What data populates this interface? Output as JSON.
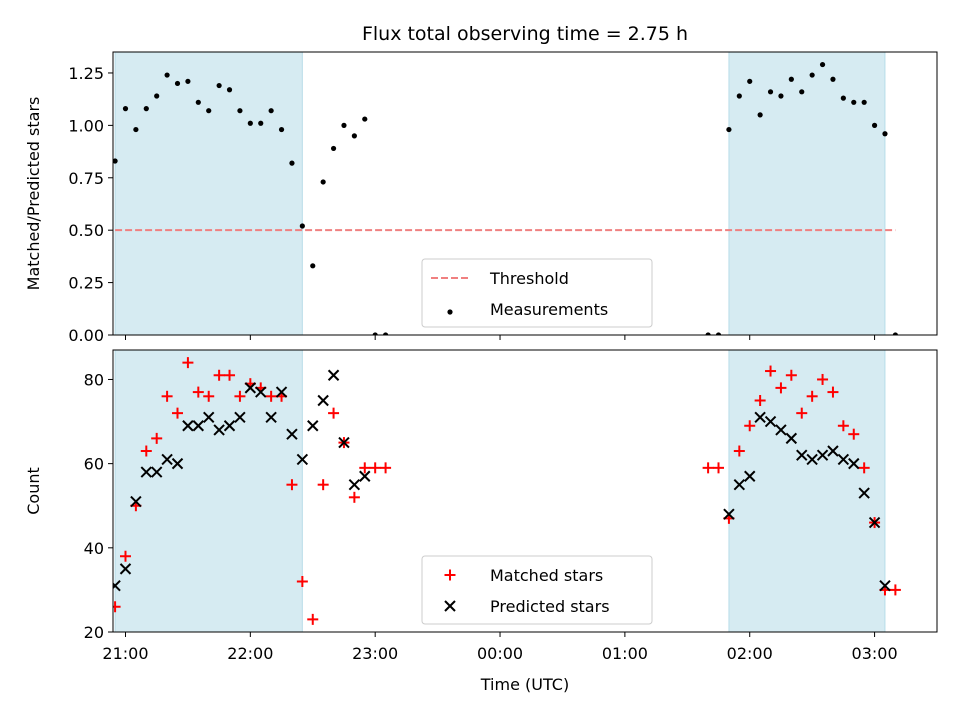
{
  "title": "Flux total observing time = 2.75 h",
  "chart_data": [
    {
      "type": "scatter",
      "panel": "top",
      "title": "Flux total observing time = 2.75 h",
      "xlabel": "",
      "ylabel": "Matched/Predicted stars",
      "xlim": [
        "20:54",
        "03:30"
      ],
      "ylim": [
        0.0,
        1.35
      ],
      "yticks": [
        0.0,
        0.25,
        0.5,
        0.75,
        1.0,
        1.25
      ],
      "ytick_labels": [
        "0.00",
        "0.25",
        "0.50",
        "0.75",
        "1.00",
        "1.25"
      ],
      "shaded_intervals": [
        [
          "20:55",
          "22:25"
        ],
        [
          "01:50",
          "03:05"
        ]
      ],
      "threshold": {
        "label": "Threshold",
        "value": 0.5,
        "x_start": "20:55",
        "x_end": "03:10",
        "color": "#f08080",
        "style": "dashed"
      },
      "legend": {
        "placement": "lower center",
        "entries": [
          "Threshold",
          "Measurements"
        ]
      },
      "series": [
        {
          "name": "Measurements",
          "marker": "dot",
          "color": "#000000",
          "points": [
            [
              "20:55",
              0.83
            ],
            [
              "21:00",
              1.08
            ],
            [
              "21:05",
              0.98
            ],
            [
              "21:10",
              1.08
            ],
            [
              "21:15",
              1.14
            ],
            [
              "21:20",
              1.24
            ],
            [
              "21:25",
              1.2
            ],
            [
              "21:30",
              1.21
            ],
            [
              "21:35",
              1.11
            ],
            [
              "21:40",
              1.07
            ],
            [
              "21:45",
              1.19
            ],
            [
              "21:50",
              1.17
            ],
            [
              "21:55",
              1.07
            ],
            [
              "22:00",
              1.01
            ],
            [
              "22:05",
              1.01
            ],
            [
              "22:10",
              1.07
            ],
            [
              "22:15",
              0.98
            ],
            [
              "22:20",
              0.82
            ],
            [
              "22:25",
              0.52
            ],
            [
              "22:30",
              0.33
            ],
            [
              "22:35",
              0.73
            ],
            [
              "22:40",
              0.89
            ],
            [
              "22:45",
              1.0
            ],
            [
              "22:50",
              0.95
            ],
            [
              "22:55",
              1.03
            ],
            [
              "23:00",
              0.0
            ],
            [
              "23:05",
              0.0
            ],
            [
              "01:40",
              0.0
            ],
            [
              "01:45",
              0.0
            ],
            [
              "01:50",
              0.98
            ],
            [
              "01:55",
              1.14
            ],
            [
              "02:00",
              1.21
            ],
            [
              "02:05",
              1.05
            ],
            [
              "02:10",
              1.16
            ],
            [
              "02:15",
              1.14
            ],
            [
              "02:20",
              1.22
            ],
            [
              "02:25",
              1.16
            ],
            [
              "02:30",
              1.24
            ],
            [
              "02:35",
              1.29
            ],
            [
              "02:40",
              1.22
            ],
            [
              "02:45",
              1.13
            ],
            [
              "02:50",
              1.11
            ],
            [
              "02:55",
              1.11
            ],
            [
              "03:00",
              1.0
            ],
            [
              "03:05",
              0.96
            ],
            [
              "03:10",
              0.0
            ]
          ]
        }
      ]
    },
    {
      "type": "scatter",
      "panel": "bottom",
      "xlabel": "Time (UTC)",
      "ylabel": "Count",
      "xlim": [
        "20:54",
        "03:30"
      ],
      "ylim": [
        20,
        87
      ],
      "xticks": [
        "21:00",
        "22:00",
        "23:00",
        "00:00",
        "01:00",
        "02:00",
        "03:00"
      ],
      "yticks": [
        20,
        40,
        60,
        80
      ],
      "shaded_intervals": [
        [
          "20:55",
          "22:25"
        ],
        [
          "01:50",
          "03:05"
        ]
      ],
      "legend": {
        "placement": "lower center",
        "entries": [
          "Matched stars",
          "Predicted stars"
        ]
      },
      "series": [
        {
          "name": "Matched stars",
          "marker": "plus",
          "color": "#ff0000",
          "points": [
            [
              "20:55",
              26
            ],
            [
              "21:00",
              38
            ],
            [
              "21:05",
              50
            ],
            [
              "21:10",
              63
            ],
            [
              "21:15",
              66
            ],
            [
              "21:20",
              76
            ],
            [
              "21:25",
              72
            ],
            [
              "21:30",
              84
            ],
            [
              "21:35",
              77
            ],
            [
              "21:40",
              76
            ],
            [
              "21:45",
              81
            ],
            [
              "21:50",
              81
            ],
            [
              "21:55",
              76
            ],
            [
              "22:00",
              79
            ],
            [
              "22:05",
              78
            ],
            [
              "22:10",
              76
            ],
            [
              "22:15",
              76
            ],
            [
              "22:20",
              55
            ],
            [
              "22:25",
              32
            ],
            [
              "22:30",
              23
            ],
            [
              "22:35",
              55
            ],
            [
              "22:40",
              72
            ],
            [
              "22:45",
              65
            ],
            [
              "22:50",
              52
            ],
            [
              "22:55",
              59
            ],
            [
              "23:00",
              59
            ],
            [
              "23:05",
              59
            ],
            [
              "01:40",
              59
            ],
            [
              "01:45",
              59
            ],
            [
              "01:50",
              47
            ],
            [
              "01:55",
              63
            ],
            [
              "02:00",
              69
            ],
            [
              "02:05",
              75
            ],
            [
              "02:10",
              82
            ],
            [
              "02:15",
              78
            ],
            [
              "02:20",
              81
            ],
            [
              "02:25",
              72
            ],
            [
              "02:30",
              76
            ],
            [
              "02:35",
              80
            ],
            [
              "02:40",
              77
            ],
            [
              "02:45",
              69
            ],
            [
              "02:50",
              67
            ],
            [
              "02:55",
              59
            ],
            [
              "03:00",
              46
            ],
            [
              "03:05",
              30
            ],
            [
              "03:10",
              30
            ]
          ]
        },
        {
          "name": "Predicted stars",
          "marker": "x",
          "color": "#000000",
          "points": [
            [
              "20:55",
              31
            ],
            [
              "21:00",
              35
            ],
            [
              "21:05",
              51
            ],
            [
              "21:10",
              58
            ],
            [
              "21:15",
              58
            ],
            [
              "21:20",
              61
            ],
            [
              "21:25",
              60
            ],
            [
              "21:30",
              69
            ],
            [
              "21:35",
              69
            ],
            [
              "21:40",
              71
            ],
            [
              "21:45",
              68
            ],
            [
              "21:50",
              69
            ],
            [
              "21:55",
              71
            ],
            [
              "22:00",
              78
            ],
            [
              "22:05",
              77
            ],
            [
              "22:10",
              71
            ],
            [
              "22:15",
              77
            ],
            [
              "22:20",
              67
            ],
            [
              "22:25",
              61
            ],
            [
              "22:30",
              69
            ],
            [
              "22:35",
              75
            ],
            [
              "22:40",
              81
            ],
            [
              "22:45",
              65
            ],
            [
              "22:50",
              55
            ],
            [
              "22:55",
              57
            ],
            [
              "01:50",
              48
            ],
            [
              "01:55",
              55
            ],
            [
              "02:00",
              57
            ],
            [
              "02:05",
              71
            ],
            [
              "02:10",
              70
            ],
            [
              "02:15",
              68
            ],
            [
              "02:20",
              66
            ],
            [
              "02:25",
              62
            ],
            [
              "02:30",
              61
            ],
            [
              "02:35",
              62
            ],
            [
              "02:40",
              63
            ],
            [
              "02:45",
              61
            ],
            [
              "02:50",
              60
            ],
            [
              "02:55",
              53
            ],
            [
              "03:00",
              46
            ],
            [
              "03:05",
              31
            ]
          ]
        }
      ]
    }
  ]
}
